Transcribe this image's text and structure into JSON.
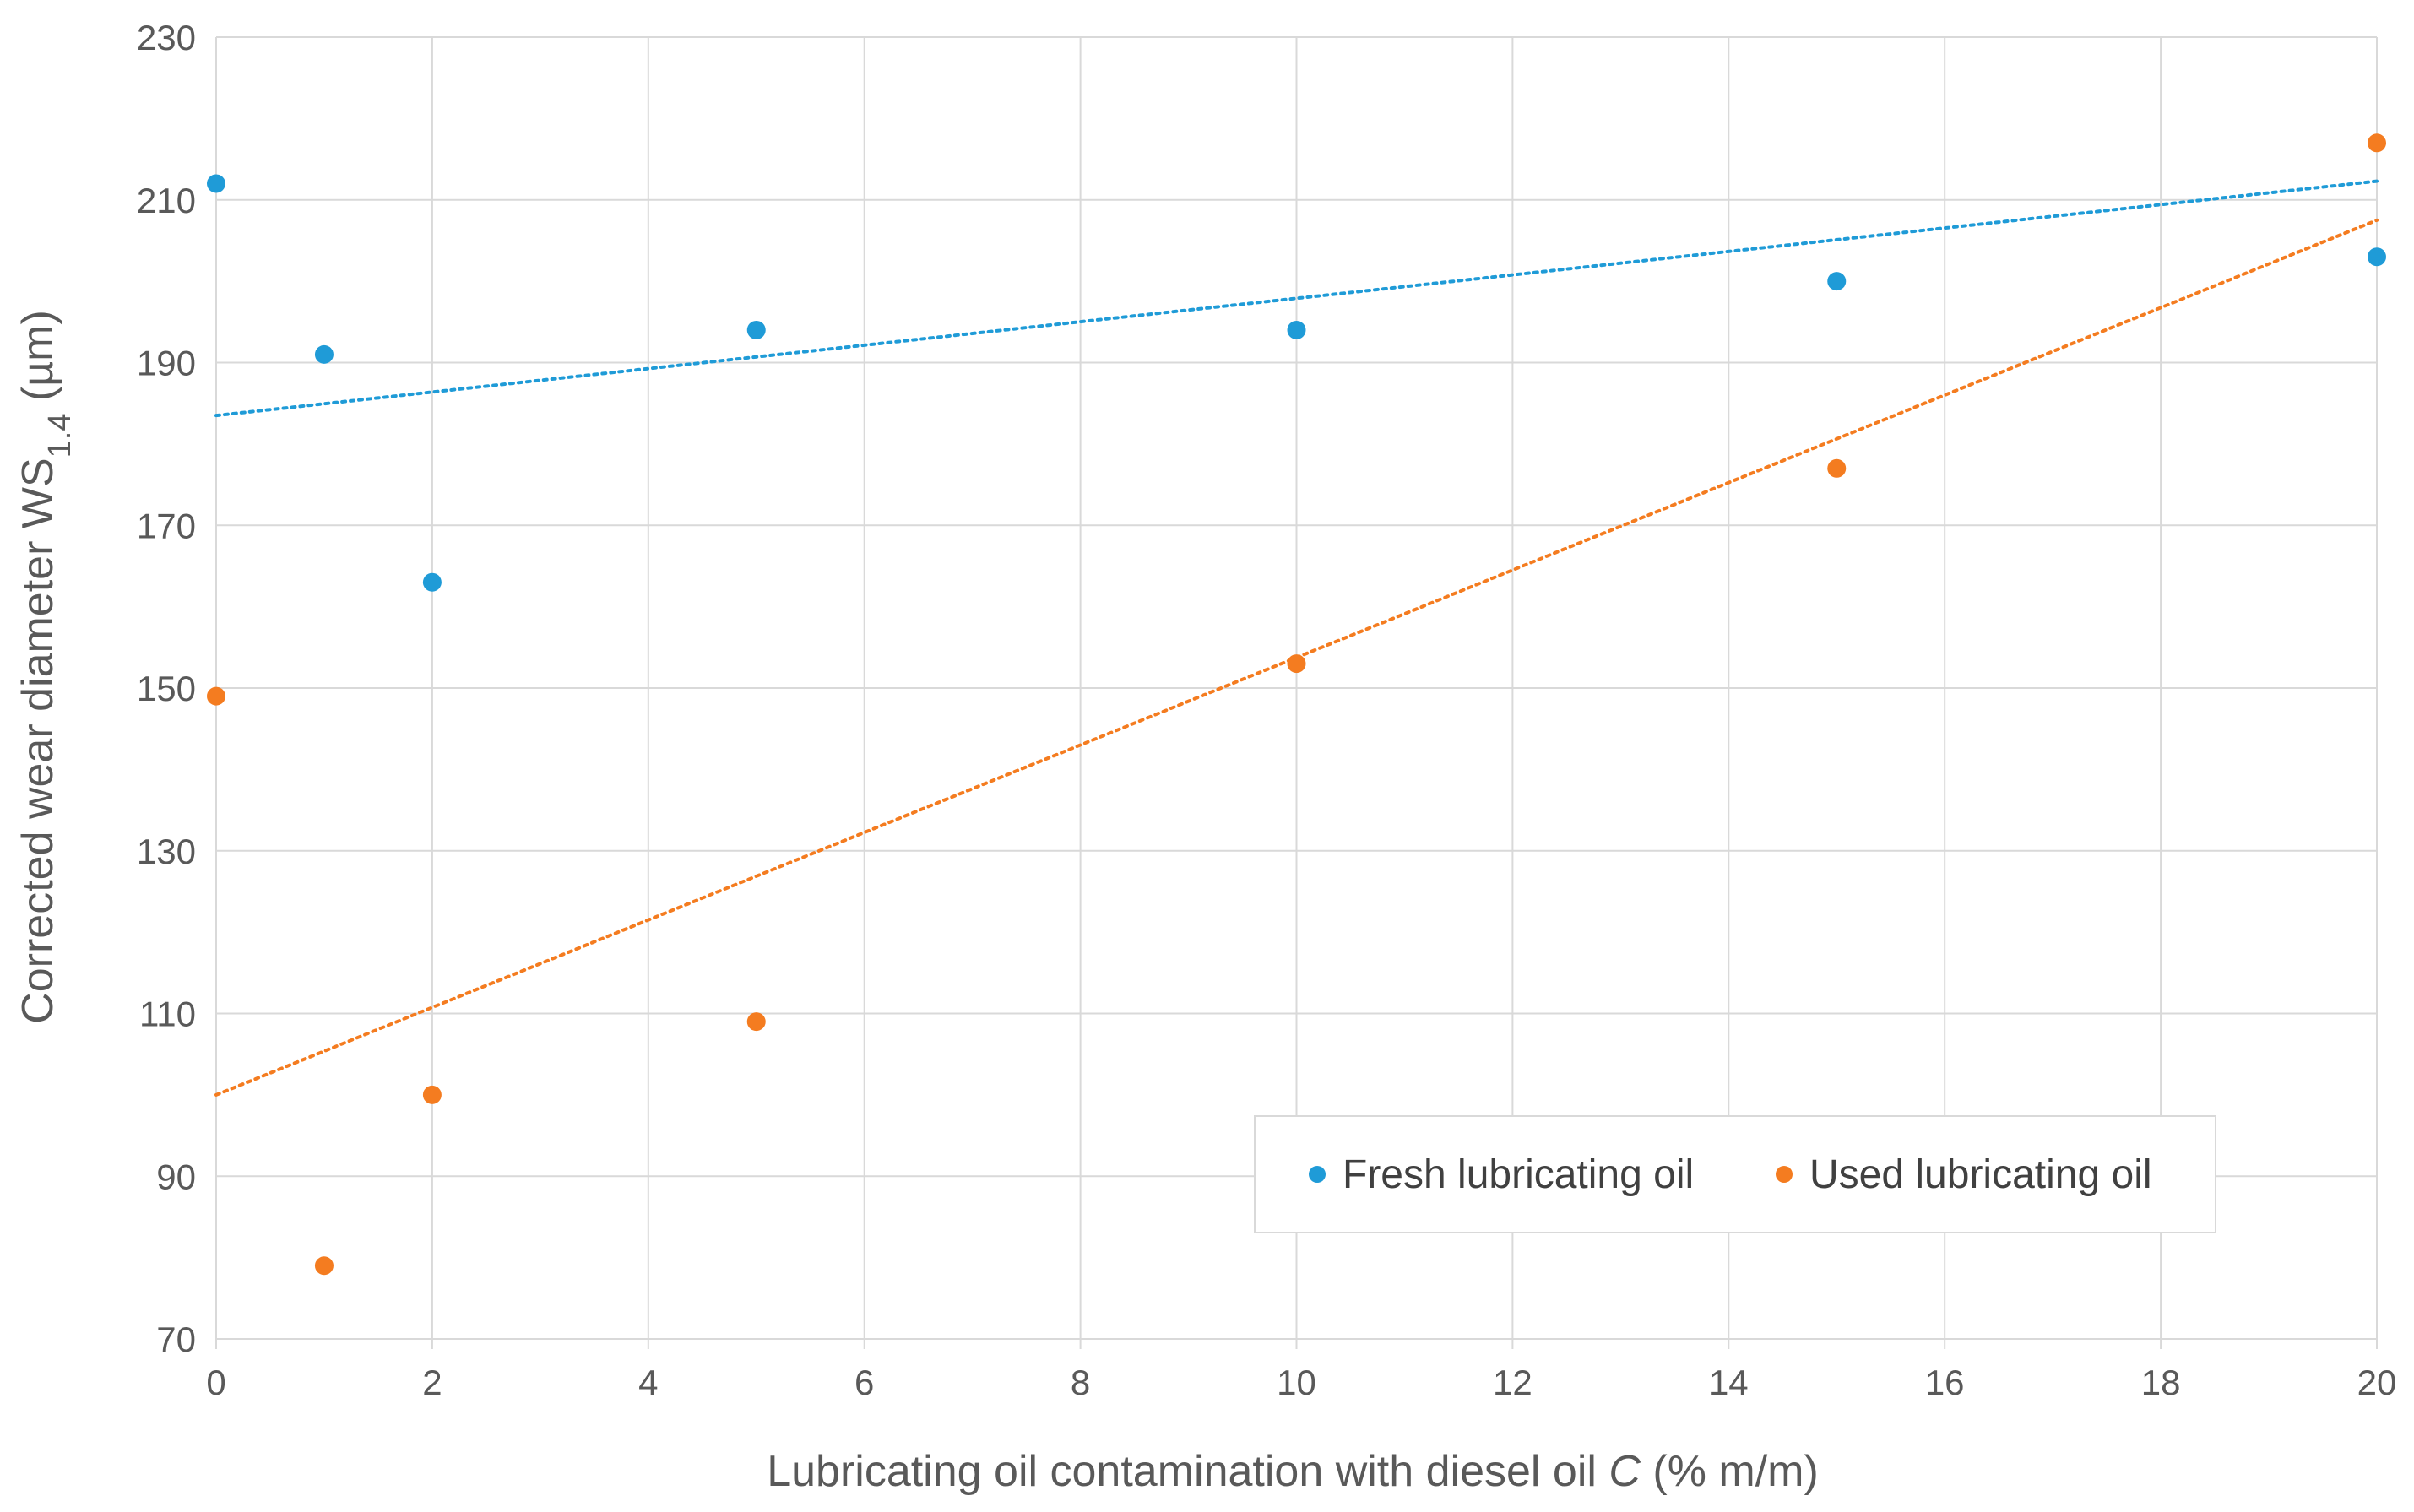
{
  "chart_data": {
    "type": "scatter",
    "title": "",
    "xlabel": {
      "text": "Lubricating oil contamination with diesel oil ",
      "variable": "C",
      "unit": " (% m/m)"
    },
    "ylabel": {
      "text": "Corrected wear diameter WS",
      "subscript": "1.4",
      "unit": " (µm)"
    },
    "xlim": [
      0,
      20
    ],
    "ylim": [
      70,
      230
    ],
    "xticks": [
      0,
      2,
      4,
      6,
      8,
      10,
      12,
      14,
      16,
      18,
      20
    ],
    "yticks": [
      70,
      90,
      110,
      130,
      150,
      170,
      190,
      210,
      230
    ],
    "grid": true,
    "legend_position": "bottom-right",
    "series": [
      {
        "name": "Fresh lubricating oil",
        "color": "#1f9bd7",
        "x": [
          0,
          1,
          2,
          5,
          10,
          15,
          20
        ],
        "y": [
          212,
          191,
          163,
          194,
          194,
          200,
          203
        ],
        "trendline": {
          "type": "linear",
          "style": "dotted",
          "x": [
            0,
            20
          ],
          "y": [
            183.5,
            212.3
          ]
        }
      },
      {
        "name": "Used lubricating oil",
        "color": "#f47c20",
        "x": [
          0,
          1,
          2,
          5,
          10,
          15,
          20
        ],
        "y": [
          149,
          79,
          100,
          109,
          153,
          177,
          217
        ],
        "trendline": {
          "type": "linear",
          "style": "dotted",
          "x": [
            0,
            20
          ],
          "y": [
            100,
            207.5
          ]
        }
      }
    ]
  }
}
